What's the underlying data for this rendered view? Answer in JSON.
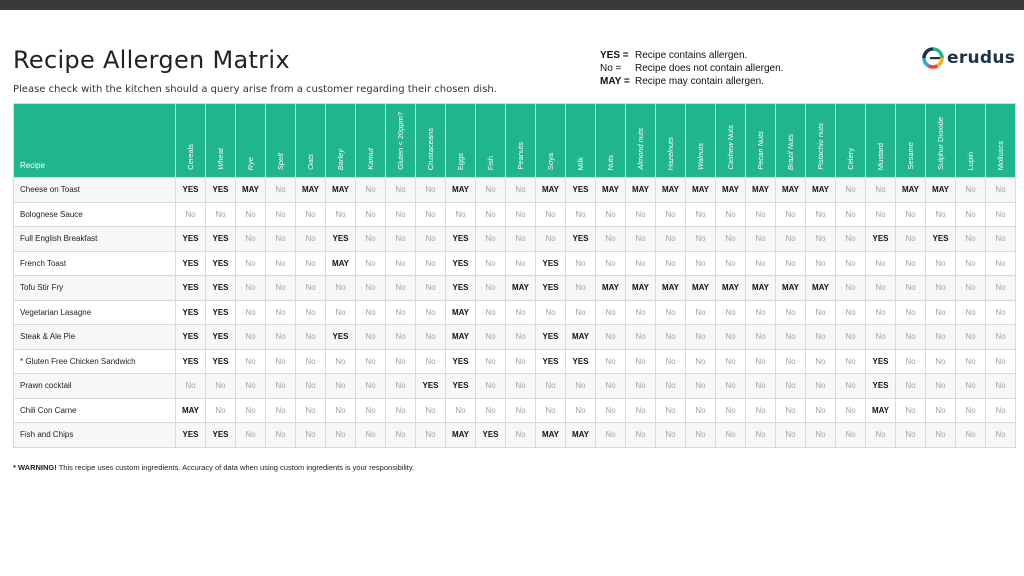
{
  "header": {
    "title": "Recipe Allergen Matrix",
    "subtitle": "Please check with the kitchen should a query arise from a customer regarding their chosen dish."
  },
  "legend": [
    {
      "key": "YES =",
      "desc": "Recipe contains allergen."
    },
    {
      "key": "No =",
      "desc": "Recipe does not contain allergen."
    },
    {
      "key": "MAY =",
      "desc": "Recipe may contain allergen."
    }
  ],
  "logo": {
    "text": "erudus",
    "colors": [
      "#20b48f",
      "#f6b21b",
      "#e8463b",
      "#3aa0d8",
      "#1f3348"
    ]
  },
  "colors": {
    "header_bg": "#20b48f",
    "header_text": "#ffffff",
    "no_text": "#a3a3a3"
  },
  "table": {
    "recipe_header": "Recipe",
    "allergens": [
      {
        "label": "Cereals",
        "italic": false
      },
      {
        "label": "Wheat",
        "italic": true
      },
      {
        "label": "Rye",
        "italic": true
      },
      {
        "label": "Spelt",
        "italic": true
      },
      {
        "label": "Oats",
        "italic": true
      },
      {
        "label": "Barley",
        "italic": true
      },
      {
        "label": "Kamut",
        "italic": true
      },
      {
        "label": "Gluten < 20ppm?",
        "italic": false
      },
      {
        "label": "Crustaceans",
        "italic": false
      },
      {
        "label": "Eggs",
        "italic": false
      },
      {
        "label": "Fish",
        "italic": false
      },
      {
        "label": "Peanuts",
        "italic": false
      },
      {
        "label": "Soya",
        "italic": false
      },
      {
        "label": "Milk",
        "italic": false
      },
      {
        "label": "Nuts",
        "italic": false
      },
      {
        "label": "Almond nuts",
        "italic": true
      },
      {
        "label": "Hazelnuts",
        "italic": true
      },
      {
        "label": "Walnuts",
        "italic": true
      },
      {
        "label": "Cashew Nuts",
        "italic": true
      },
      {
        "label": "Pecan Nuts",
        "italic": true
      },
      {
        "label": "Brazil Nuts",
        "italic": true
      },
      {
        "label": "Pistachio nuts",
        "italic": true
      },
      {
        "label": "Celery",
        "italic": false
      },
      {
        "label": "Mustard",
        "italic": false
      },
      {
        "label": "Sesame",
        "italic": false
      },
      {
        "label": "Sulphur Dioxide",
        "italic": false
      },
      {
        "label": "Lupin",
        "italic": false
      },
      {
        "label": "Molluscs",
        "italic": false
      }
    ],
    "rows": [
      {
        "name": "Cheese on Toast",
        "values": [
          "YES",
          "YES",
          "MAY",
          "No",
          "MAY",
          "MAY",
          "No",
          "No",
          "No",
          "MAY",
          "No",
          "No",
          "MAY",
          "YES",
          "MAY",
          "MAY",
          "MAY",
          "MAY",
          "MAY",
          "MAY",
          "MAY",
          "MAY",
          "No",
          "No",
          "MAY",
          "MAY",
          "No",
          "No"
        ]
      },
      {
        "name": "Bolognese Sauce",
        "values": [
          "No",
          "No",
          "No",
          "No",
          "No",
          "No",
          "No",
          "No",
          "No",
          "No",
          "No",
          "No",
          "No",
          "No",
          "No",
          "No",
          "No",
          "No",
          "No",
          "No",
          "No",
          "No",
          "No",
          "No",
          "No",
          "No",
          "No",
          "No"
        ]
      },
      {
        "name": "Full English Breakfast",
        "values": [
          "YES",
          "YES",
          "No",
          "No",
          "No",
          "YES",
          "No",
          "No",
          "No",
          "YES",
          "No",
          "No",
          "No",
          "YES",
          "No",
          "No",
          "No",
          "No",
          "No",
          "No",
          "No",
          "No",
          "No",
          "YES",
          "No",
          "YES",
          "No",
          "No"
        ]
      },
      {
        "name": "French Toast",
        "values": [
          "YES",
          "YES",
          "No",
          "No",
          "No",
          "MAY",
          "No",
          "No",
          "No",
          "YES",
          "No",
          "No",
          "YES",
          "No",
          "No",
          "No",
          "No",
          "No",
          "No",
          "No",
          "No",
          "No",
          "No",
          "No",
          "No",
          "No",
          "No",
          "No"
        ]
      },
      {
        "name": "Tofu Stir Fry",
        "values": [
          "YES",
          "YES",
          "No",
          "No",
          "No",
          "No",
          "No",
          "No",
          "No",
          "YES",
          "No",
          "MAY",
          "YES",
          "No",
          "MAY",
          "MAY",
          "MAY",
          "MAY",
          "MAY",
          "MAY",
          "MAY",
          "MAY",
          "No",
          "No",
          "No",
          "No",
          "No",
          "No"
        ]
      },
      {
        "name": "Vegetarian Lasagne",
        "values": [
          "YES",
          "YES",
          "No",
          "No",
          "No",
          "No",
          "No",
          "No",
          "No",
          "MAY",
          "No",
          "No",
          "No",
          "No",
          "No",
          "No",
          "No",
          "No",
          "No",
          "No",
          "No",
          "No",
          "No",
          "No",
          "No",
          "No",
          "No",
          "No"
        ]
      },
      {
        "name": "Steak & Ale Pie",
        "values": [
          "YES",
          "YES",
          "No",
          "No",
          "No",
          "YES",
          "No",
          "No",
          "No",
          "MAY",
          "No",
          "No",
          "YES",
          "MAY",
          "No",
          "No",
          "No",
          "No",
          "No",
          "No",
          "No",
          "No",
          "No",
          "No",
          "No",
          "No",
          "No",
          "No"
        ]
      },
      {
        "name": "* Gluten Free Chicken Sandwich",
        "values": [
          "YES",
          "YES",
          "No",
          "No",
          "No",
          "No",
          "No",
          "No",
          "No",
          "YES",
          "No",
          "No",
          "YES",
          "YES",
          "No",
          "No",
          "No",
          "No",
          "No",
          "No",
          "No",
          "No",
          "No",
          "YES",
          "No",
          "No",
          "No",
          "No"
        ]
      },
      {
        "name": "Prawn cocktail",
        "values": [
          "No",
          "No",
          "No",
          "No",
          "No",
          "No",
          "No",
          "No",
          "YES",
          "YES",
          "No",
          "No",
          "No",
          "No",
          "No",
          "No",
          "No",
          "No",
          "No",
          "No",
          "No",
          "No",
          "No",
          "YES",
          "No",
          "No",
          "No",
          "No"
        ]
      },
      {
        "name": "Chili Con Carne",
        "values": [
          "MAY",
          "No",
          "No",
          "No",
          "No",
          "No",
          "No",
          "No",
          "No",
          "No",
          "No",
          "No",
          "No",
          "No",
          "No",
          "No",
          "No",
          "No",
          "No",
          "No",
          "No",
          "No",
          "No",
          "MAY",
          "No",
          "No",
          "No",
          "No"
        ]
      },
      {
        "name": "Fish and Chips",
        "values": [
          "YES",
          "YES",
          "No",
          "No",
          "No",
          "No",
          "No",
          "No",
          "No",
          "MAY",
          "YES",
          "No",
          "MAY",
          "MAY",
          "No",
          "No",
          "No",
          "No",
          "No",
          "No",
          "No",
          "No",
          "No",
          "No",
          "No",
          "No",
          "No",
          "No"
        ]
      }
    ]
  },
  "footer": {
    "warning_label": "* WARNING!",
    "warning_text": " This recipe uses custom ingredients. Accuracy of data when using custom ingredients is your responsibility."
  }
}
